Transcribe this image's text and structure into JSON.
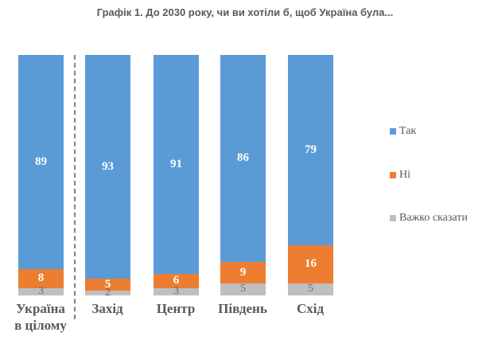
{
  "title": "Графік 1. До 2030 року, чи ви хотіли б, щоб Україна була...",
  "colors": {
    "yes": "#5B9BD5",
    "no": "#ED7D31",
    "hard": "#BFBFBF"
  },
  "legend": [
    {
      "label": "Так",
      "color": "#5B9BD5"
    },
    {
      "label": "Ні",
      "color": "#ED7D31"
    },
    {
      "label": "Важко сказати",
      "color": "#BFBFBF"
    }
  ],
  "categories": [
    "Україна в цілому",
    "Захід",
    "Центр",
    "Південь",
    "Схід"
  ],
  "x_labels": [
    {
      "line1": "Україна",
      "line2": "в цілому"
    },
    {
      "line1": "Захід",
      "line2": ""
    },
    {
      "line1": "Центр",
      "line2": ""
    },
    {
      "line1": "Південь",
      "line2": ""
    },
    {
      "line1": "Схід",
      "line2": ""
    }
  ],
  "chart_data": {
    "type": "bar",
    "stacked": true,
    "title": "Графік 1. До 2030 року, чи ви хотіли б, щоб Україна була...",
    "categories": [
      "Україна в цілому",
      "Захід",
      "Центр",
      "Південь",
      "Схід"
    ],
    "series": [
      {
        "name": "Так",
        "color": "#5B9BD5",
        "values": [
          89,
          93,
          91,
          86,
          79
        ]
      },
      {
        "name": "Ні",
        "color": "#ED7D31",
        "values": [
          8,
          5,
          6,
          9,
          16
        ]
      },
      {
        "name": "Важко сказати",
        "color": "#BFBFBF",
        "values": [
          3,
          2,
          3,
          5,
          5
        ]
      }
    ],
    "xlabel": "",
    "ylabel": "",
    "ylim": [
      0,
      100
    ],
    "grid": false,
    "legend_position": "right",
    "annotations": [
      "Dashed separator between 'Україна в цілому' and regional bars"
    ]
  }
}
